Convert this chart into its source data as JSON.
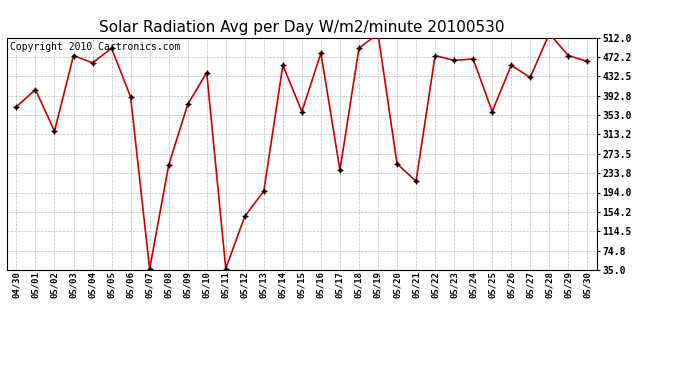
{
  "title": "Solar Radiation Avg per Day W/m2/minute 20100530",
  "copyright": "Copyright 2010 Cartronics.com",
  "dates": [
    "04/30",
    "05/01",
    "05/02",
    "05/03",
    "05/04",
    "05/05",
    "05/06",
    "05/07",
    "05/08",
    "05/09",
    "05/10",
    "05/11",
    "05/12",
    "05/13",
    "05/14",
    "05/15",
    "05/16",
    "05/17",
    "05/18",
    "05/19",
    "05/20",
    "05/21",
    "05/22",
    "05/23",
    "05/24",
    "05/25",
    "05/26",
    "05/27",
    "05/28",
    "05/29",
    "05/30"
  ],
  "values": [
    370,
    405,
    320,
    475,
    460,
    490,
    390,
    37,
    250,
    375,
    440,
    38,
    145,
    197,
    455,
    360,
    480,
    240,
    490,
    520,
    253,
    217,
    475,
    465,
    468,
    360,
    455,
    430,
    520,
    475,
    463
  ],
  "line_color": "#cc0000",
  "marker_color": "#000000",
  "bg_color": "#ffffff",
  "plot_bg_color": "#ffffff",
  "grid_color": "#bbbbbb",
  "yticks": [
    35.0,
    74.8,
    114.5,
    154.2,
    194.0,
    233.8,
    273.5,
    313.2,
    353.0,
    392.8,
    432.5,
    472.2,
    512.0
  ],
  "ylim": [
    35.0,
    512.0
  ],
  "title_fontsize": 11,
  "copyright_fontsize": 7
}
